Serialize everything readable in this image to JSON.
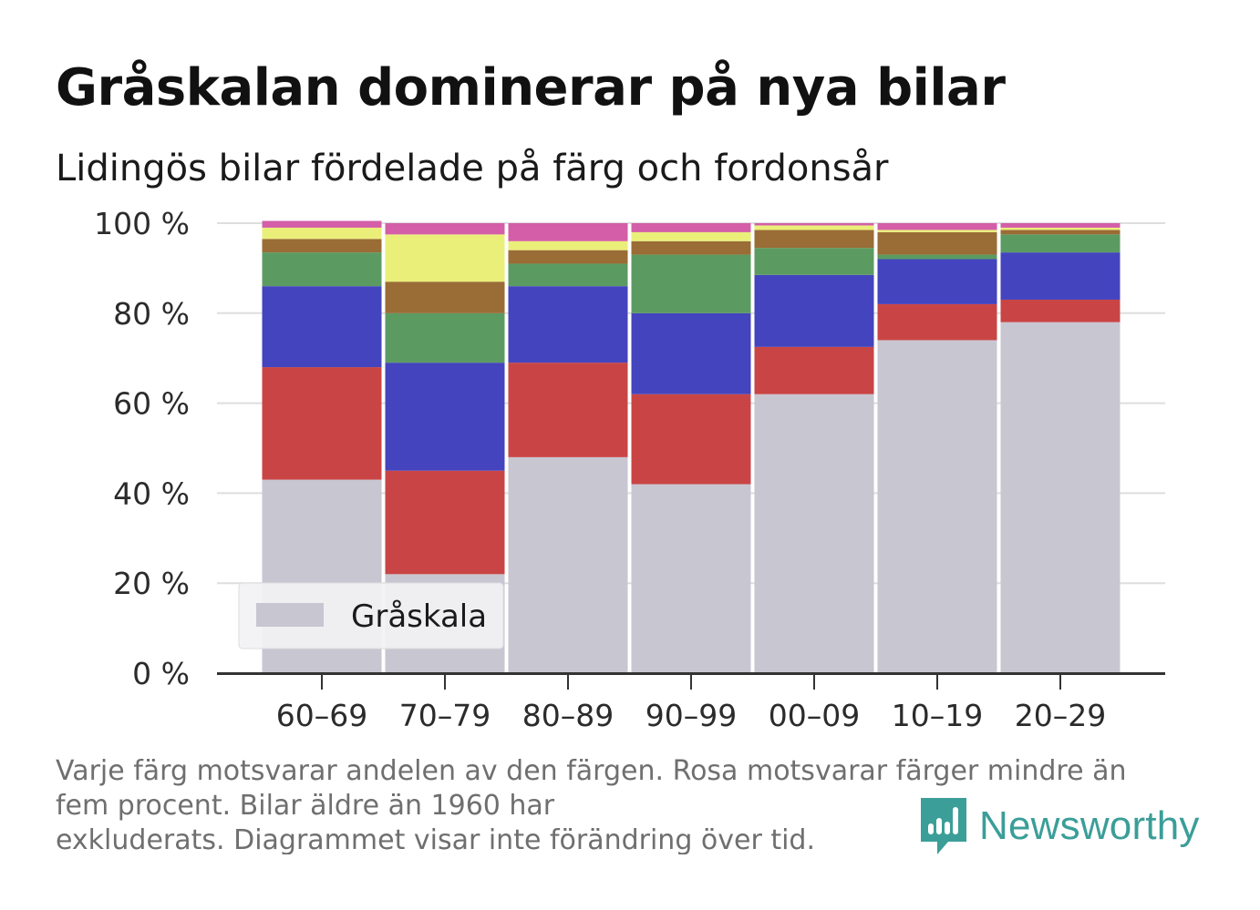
{
  "title": "Gråskalan dominerar på nya bilar",
  "subtitle": "Lidingös bilar fördelade på färg och fordonsår",
  "footnote": {
    "line1": "Varje färg motsvarar andelen av den färgen. Rosa motsvarar färger mindre än",
    "line2": "fem procent. Bilar äldre än 1960 har",
    "line3": "exkluderats. Diagrammet visar inte förändring över tid."
  },
  "brand": {
    "name": "Newsworthy",
    "icon": "newsworthy-logo-icon",
    "color": "#3b9e98"
  },
  "chart_data": {
    "type": "bar",
    "stacked": true,
    "categories": [
      "60–69",
      "70–79",
      "80–89",
      "90–99",
      "00–09",
      "10–19",
      "20–29"
    ],
    "y_ticks": [
      "0 %",
      "20 %",
      "40 %",
      "60 %",
      "80 %",
      "100 %"
    ],
    "ylim": [
      0,
      100
    ],
    "grid": "horizontal",
    "legend": {
      "entries": [
        "Gråskala"
      ],
      "placement": "bottom-left"
    },
    "series": [
      {
        "name": "Gråskala",
        "color": "#c8c6d1",
        "values": [
          43,
          22,
          48,
          42,
          62,
          74,
          78
        ]
      },
      {
        "color": "#c94545",
        "values": [
          25,
          23,
          21,
          20,
          10.5,
          8,
          5
        ]
      },
      {
        "color": "#4444be",
        "values": [
          18,
          24,
          17,
          18,
          16,
          10,
          10.5
        ]
      },
      {
        "color": "#5b9b62",
        "values": [
          7.5,
          11,
          5,
          13,
          6,
          1,
          4
        ]
      },
      {
        "color": "#9a6c36",
        "values": [
          3,
          7,
          3,
          3,
          4,
          5,
          1
        ]
      },
      {
        "color": "#eaef7a",
        "values": [
          2.5,
          10.5,
          2,
          2,
          1,
          0.5,
          0.5
        ]
      },
      {
        "color": "#d45ea8",
        "values": [
          1.5,
          2.5,
          4,
          2,
          0.5,
          1.5,
          1
        ]
      }
    ]
  }
}
